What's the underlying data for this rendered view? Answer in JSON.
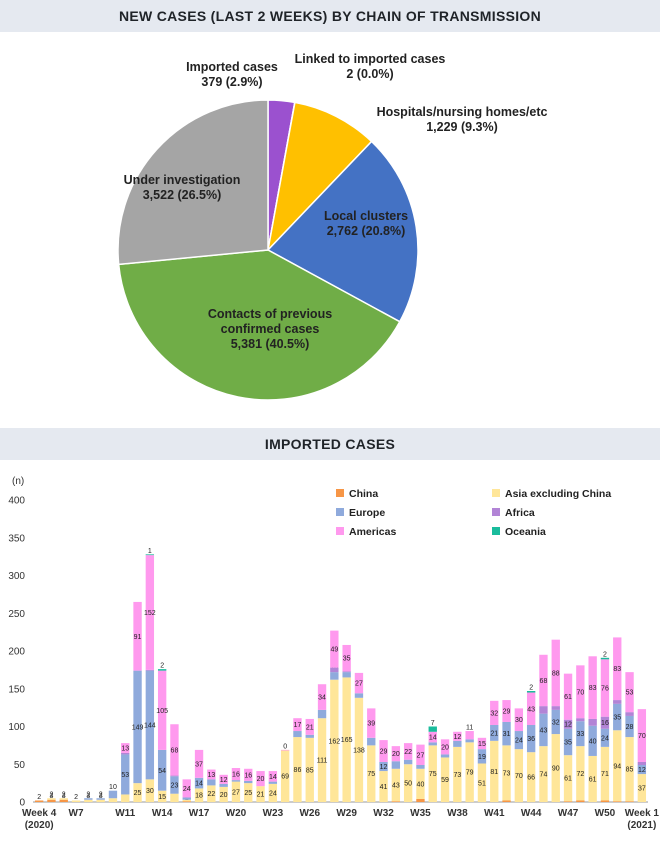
{
  "chart_data": [
    {
      "type": "pie",
      "title": "NEW CASES (LAST 2 WEEKS) BY CHAIN OF TRANSMISSION",
      "slices": [
        {
          "name": "Imported cases",
          "value": 379,
          "value_text": "379",
          "pct_text": "(2.9%)",
          "color": "#9b51cf"
        },
        {
          "name": "Linked to imported cases",
          "value": 2,
          "value_text": "2",
          "pct_text": "(0.0%)",
          "color": "#7a3fbf"
        },
        {
          "name": "Hospitals/nursing homes/etc",
          "value": 1229,
          "value_text": "1,229",
          "pct_text": "(9.3%)",
          "color": "#ffc000"
        },
        {
          "name": "Local clusters",
          "value": 2762,
          "value_text": "2,762",
          "pct_text": "(20.8%)",
          "color": "#4472c4"
        },
        {
          "name": "Contacts of previous confirmed cases",
          "value": 5381,
          "value_text": "5,381",
          "pct_text": "(40.5%)",
          "color": "#70ad47"
        },
        {
          "name": "Under investigation",
          "value": 3522,
          "value_text": "3,522",
          "pct_text": "(26.5%)",
          "color": "#a5a5a5"
        }
      ]
    },
    {
      "type": "bar",
      "stacked": true,
      "title": "IMPORTED CASES",
      "ylabel": "(n)",
      "ylim": [
        0,
        400
      ],
      "yticks": [
        0,
        50,
        100,
        150,
        200,
        250,
        300,
        350,
        400
      ],
      "x_tick_labels": [
        {
          "text": "Week 4",
          "sub": "(2020)",
          "index": 0
        },
        {
          "text": "W7",
          "index": 3
        },
        {
          "text": "W11",
          "index": 7
        },
        {
          "text": "W14",
          "index": 10
        },
        {
          "text": "W17",
          "index": 13
        },
        {
          "text": "W20",
          "index": 16
        },
        {
          "text": "W23",
          "index": 19
        },
        {
          "text": "W26",
          "index": 22
        },
        {
          "text": "W29",
          "index": 25
        },
        {
          "text": "W32",
          "index": 28
        },
        {
          "text": "W35",
          "index": 31
        },
        {
          "text": "W38",
          "index": 34
        },
        {
          "text": "W41",
          "index": 37
        },
        {
          "text": "W44",
          "index": 40
        },
        {
          "text": "W47",
          "index": 43
        },
        {
          "text": "W50",
          "index": 46
        },
        {
          "text": "Week 1",
          "sub": "(2021)",
          "index": 49
        }
      ],
      "legend": {
        "position": "top-right",
        "entries": [
          {
            "key": "china",
            "name": "China",
            "color": "#f79646"
          },
          {
            "key": "asia",
            "name": "Asia excluding China",
            "color": "#ffe699"
          },
          {
            "key": "europe",
            "name": "Europe",
            "color": "#8faadc"
          },
          {
            "key": "africa",
            "name": "Africa",
            "color": "#b284d6"
          },
          {
            "key": "americas",
            "name": "Americas",
            "color": "#ff99ee"
          },
          {
            "key": "oceania",
            "name": "Oceania",
            "color": "#1abc9c"
          }
        ]
      },
      "series_colors": {
        "china": "#f79646",
        "asia": "#ffe699",
        "europe": "#8faadc",
        "africa": "#b284d6",
        "americas": "#ff99ee",
        "oceania": "#1abc9c"
      },
      "weeks": [
        {
          "china": 2
        },
        {
          "china": 3,
          "asia": 2
        },
        {
          "china": 3,
          "asia": 2
        },
        {
          "asia": 2
        },
        {
          "asia": 3,
          "europe": 2
        },
        {
          "asia": 3,
          "europe": 2
        },
        {
          "asia": 5,
          "europe": 10
        },
        {
          "asia": 10,
          "europe": 53,
          "americas": 13,
          "africa": 2
        },
        {
          "asia": 25,
          "europe": 149,
          "americas": 91
        },
        {
          "asia": 30,
          "europe": 144,
          "africa": 1,
          "americas": 152,
          "oceania": 1
        },
        {
          "asia": 15,
          "europe": 54,
          "americas": 105,
          "oceania": 2
        },
        {
          "asia": 11,
          "europe": 23,
          "americas": 68,
          "africa": 1
        },
        {
          "asia": 2,
          "europe": 3,
          "americas": 24,
          "china": 1
        },
        {
          "asia": 18,
          "europe": 14,
          "americas": 37
        },
        {
          "asia": 22,
          "europe": 8,
          "americas": 13
        },
        {
          "asia": 20,
          "europe": 4,
          "americas": 12
        },
        {
          "asia": 27,
          "europe": 2,
          "americas": 16
        },
        {
          "asia": 25,
          "europe": 3,
          "americas": 16
        },
        {
          "asia": 21,
          "americas": 20
        },
        {
          "asia": 24,
          "europe": 3,
          "americas": 14
        },
        {
          "asia": 69,
          "americas": 0
        },
        {
          "asia": 86,
          "europe": 8,
          "americas": 17
        },
        {
          "asia": 85,
          "europe": 4,
          "americas": 21
        },
        {
          "asia": 111,
          "europe": 11,
          "americas": 34
        },
        {
          "asia": 162,
          "europe": 10,
          "africa": 6,
          "americas": 49
        },
        {
          "asia": 165,
          "europe": 7,
          "americas": 35,
          "africa": 1
        },
        {
          "asia": 138,
          "europe": 6,
          "americas": 27
        },
        {
          "asia": 75,
          "europe": 10,
          "americas": 39
        },
        {
          "asia": 41,
          "europe": 12,
          "americas": 29
        },
        {
          "asia": 43,
          "europe": 10,
          "americas": 20,
          "china": 1
        },
        {
          "asia": 50,
          "europe": 6,
          "americas": 22
        },
        {
          "asia": 40,
          "europe": 5,
          "americas": 27,
          "china": 4
        },
        {
          "asia": 75,
          "europe": 4,
          "americas": 14,
          "oceania": 7
        },
        {
          "asia": 59,
          "europe": 4,
          "americas": 20
        },
        {
          "asia": 73,
          "europe": 8,
          "americas": 12
        },
        {
          "asia": 79,
          "europe": 4,
          "americas": 11
        },
        {
          "asia": 51,
          "europe": 19,
          "americas": 15
        },
        {
          "asia": 81,
          "europe": 21,
          "americas": 32
        },
        {
          "asia": 73,
          "europe": 31,
          "americas": 29,
          "china": 2
        },
        {
          "asia": 70,
          "europe": 24,
          "americas": 30
        },
        {
          "asia": 66,
          "europe": 36,
          "americas": 43,
          "oceania": 2
        },
        {
          "asia": 74,
          "europe": 43,
          "americas": 68,
          "africa": 10
        },
        {
          "asia": 90,
          "europe": 32,
          "americas": 88,
          "africa": 5
        },
        {
          "asia": 61,
          "europe": 35,
          "americas": 61,
          "africa": 12,
          "china": 1
        },
        {
          "asia": 72,
          "europe": 33,
          "americas": 70,
          "africa": 4,
          "china": 2
        },
        {
          "asia": 61,
          "europe": 40,
          "americas": 83,
          "africa": 9
        },
        {
          "asia": 71,
          "europe": 24,
          "americas": 76,
          "africa": 16,
          "oceania": 2,
          "china": 2
        },
        {
          "asia": 94,
          "europe": 35,
          "americas": 83,
          "africa": 5,
          "china": 1
        },
        {
          "asia": 85,
          "europe": 28,
          "americas": 53,
          "africa": 5,
          "china": 1
        },
        {
          "asia": 37,
          "europe": 12,
          "americas": 70,
          "africa": 4
        }
      ]
    }
  ]
}
